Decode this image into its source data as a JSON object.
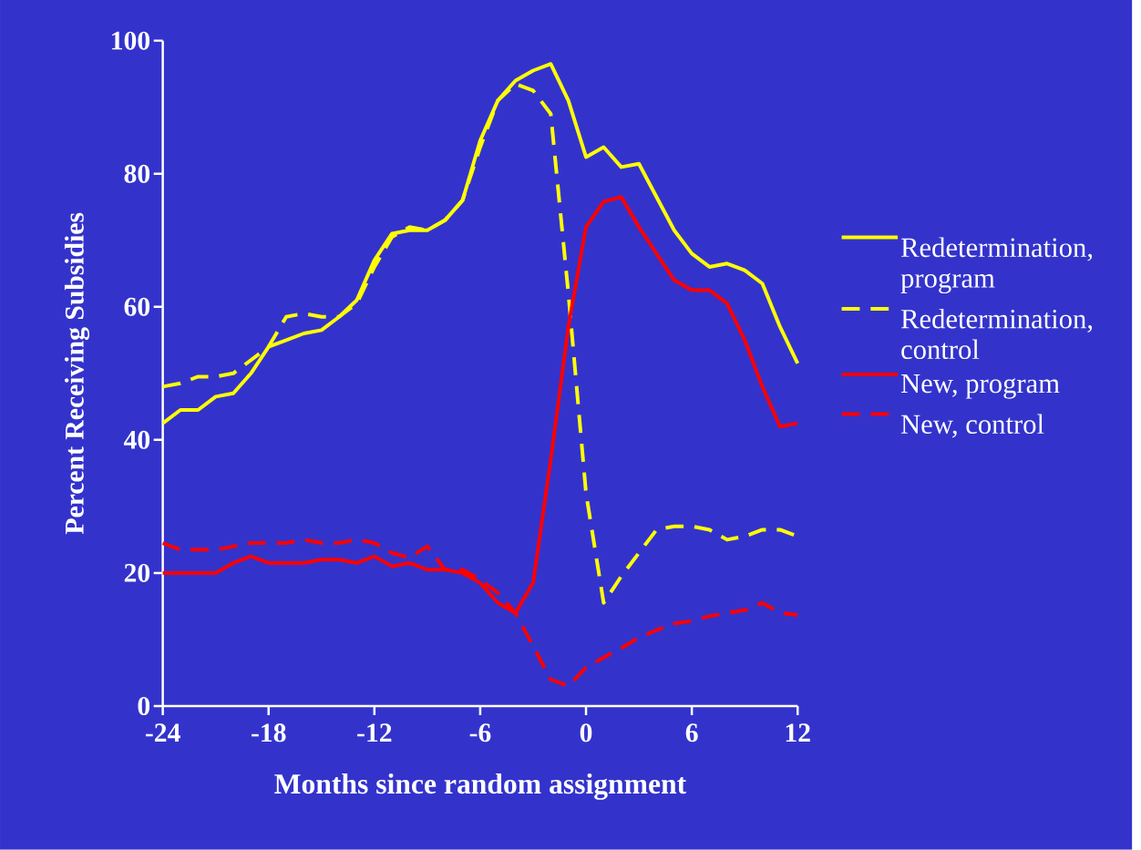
{
  "chart_data": {
    "type": "line",
    "xlabel": "Months since random assignment",
    "ylabel": "Percent Receiving Subsidies",
    "x": [
      -24,
      -23,
      -22,
      -21,
      -20,
      -19,
      -18,
      -17,
      -16,
      -15,
      -14,
      -13,
      -12,
      -11,
      -10,
      -9,
      -8,
      -7,
      -6,
      -5,
      -4,
      -3,
      -2,
      -1,
      0,
      1,
      2,
      3,
      4,
      5,
      6,
      7,
      8,
      9,
      10,
      11,
      12
    ],
    "series": [
      {
        "name": "Redetermination, program",
        "color": "#ffff00",
        "line_style": "solid",
        "values": [
          42.5,
          44.5,
          44.5,
          46.5,
          47,
          50,
          54,
          55,
          56,
          56.5,
          58.5,
          61,
          67,
          71,
          71.5,
          71.5,
          73,
          76,
          85,
          91,
          94,
          95.5,
          96.5,
          91,
          82.5,
          84,
          81,
          81.5,
          76.5,
          71.5,
          68,
          66,
          66.5,
          65.5,
          63.5,
          57,
          51.5
        ]
      },
      {
        "name": "Redetermination, control",
        "color": "#ffff00",
        "line_style": "dashed",
        "values": [
          48,
          48.5,
          49.5,
          49.5,
          50,
          52,
          54,
          58.5,
          59,
          58.5,
          58.5,
          60.5,
          66,
          70.5,
          72,
          71.5,
          73,
          76,
          84,
          91,
          93.5,
          92.5,
          89,
          62,
          32,
          15.5,
          19.5,
          23,
          26.5,
          27,
          27,
          26.5,
          25,
          25.5,
          26.5,
          26.5,
          25.5
        ]
      },
      {
        "name": "New, program",
        "color": "#ff0000",
        "line_style": "solid",
        "values": [
          20,
          20,
          20,
          20,
          21.5,
          22.5,
          21.5,
          21.5,
          21.5,
          22,
          22,
          21.5,
          22.5,
          21,
          21.5,
          20.5,
          20.5,
          20,
          18.5,
          15.5,
          14,
          18.5,
          37,
          57,
          72,
          75.8,
          76.5,
          72,
          68,
          64,
          62.5,
          62.5,
          60.5,
          55,
          48,
          42,
          42.5
        ]
      },
      {
        "name": "New, control",
        "color": "#ff0000",
        "line_style": "dashed",
        "values": [
          24.5,
          23.5,
          23.5,
          23.5,
          24,
          24.5,
          24.5,
          24.5,
          25,
          24.5,
          24.5,
          25,
          24.5,
          23,
          22.3,
          24,
          20.5,
          20.5,
          19,
          17,
          14,
          9,
          4,
          3,
          5.8,
          7.3,
          8.7,
          10.3,
          11.4,
          12.4,
          12.8,
          13.5,
          14,
          14.4,
          15.5,
          14,
          13.7
        ]
      }
    ],
    "xlim": [
      -24,
      12
    ],
    "ylim": [
      0,
      100
    ],
    "xticks": [
      -24,
      -18,
      -12,
      -6,
      0,
      6,
      12
    ],
    "yticks": [
      0,
      20,
      40,
      60,
      80,
      100
    ],
    "grid": false,
    "legend": "right",
    "marker": "none"
  }
}
